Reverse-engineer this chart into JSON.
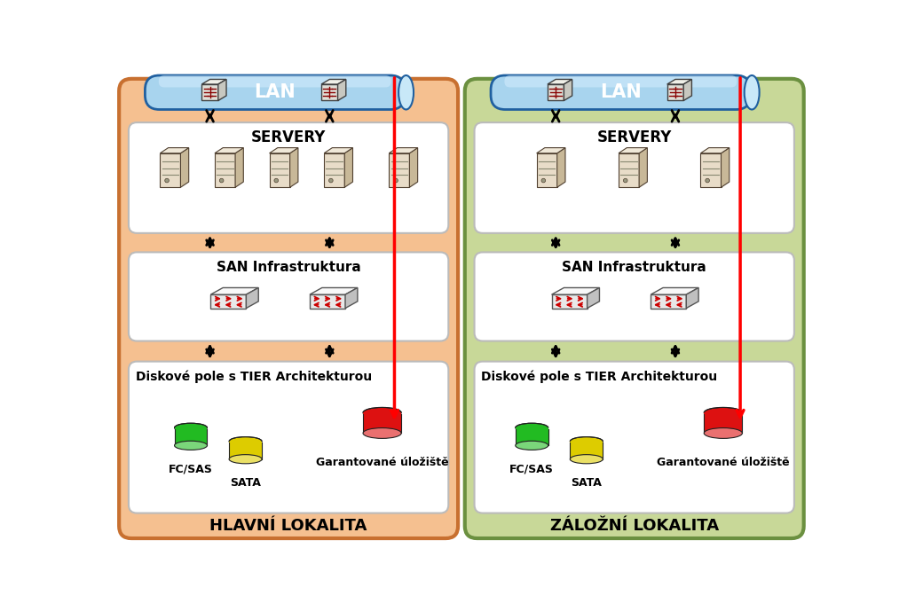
{
  "left_title": "HLAVNÍ LOKALITA",
  "right_title": "ZÁLOŽNÍ LOKALITA",
  "lan_label": "LAN",
  "servery_label": "SERVERY",
  "san_label": "SAN Infrastruktura",
  "disk_label": "Diskové pole s TIER Architekturou",
  "guaranteed_label": "Garantované úložiště",
  "fc_label": "FC/SAS",
  "sata_label": "SATA",
  "left_bg": "#F5C090",
  "left_border": "#C87030",
  "right_bg": "#C8D898",
  "right_border": "#6B9040",
  "inner_box_bg": "#FFFFFF",
  "lan_pipe_grad_top": "#A8D4EE",
  "lan_pipe_grad_bot": "#4090C0",
  "lan_pipe_border": "#2060A0",
  "lan_cap_color": "#C8E8F8",
  "red_line_color": "#FF0000",
  "black_arrow_color": "#000000",
  "fig_bg": "#FFFFFF",
  "server_face": "#E8DCC8",
  "server_side": "#C8B898",
  "server_top": "#F0E8D8",
  "server_dark": "#504030",
  "san_face": "#E8E8E8",
  "san_side": "#C0C0C0",
  "san_top": "#F8F8F8",
  "san_red": "#CC0000"
}
